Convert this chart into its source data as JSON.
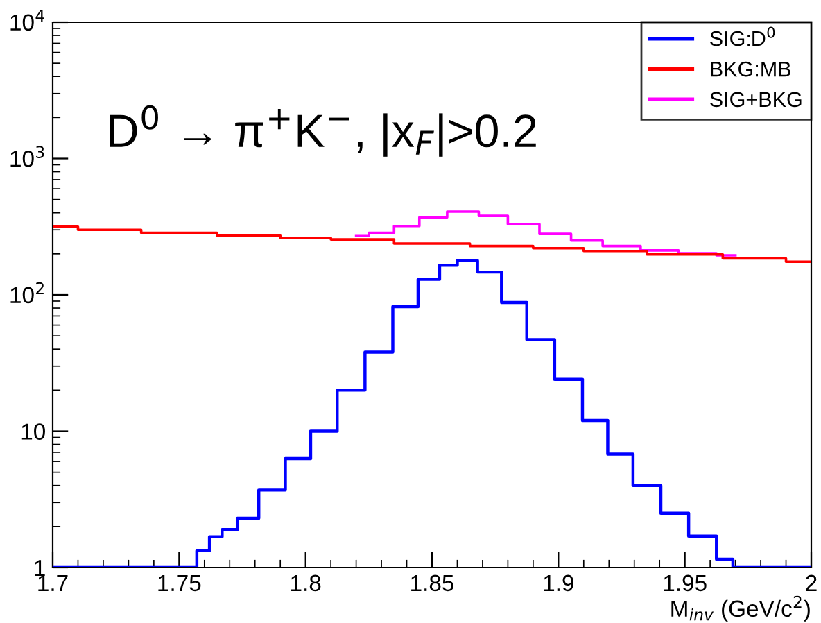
{
  "chart_data": {
    "type": "step",
    "xlabel": "M$_{inv}$ (GeV/c$^{2}$)",
    "annotations": [
      "D$^{0}$ → π$^{+}$K$^{−}$, |x$_{F}$|>0.2"
    ],
    "series": [
      {
        "name": "SIG:D$^{0}$",
        "color": "#0000ff",
        "x": [
          1.7,
          1.72,
          1.74,
          1.754,
          1.76,
          1.764,
          1.77,
          1.776,
          1.787,
          1.797,
          1.807,
          1.818,
          1.829,
          1.84,
          1.849,
          1.857,
          1.863,
          1.873,
          1.882,
          1.893,
          1.904,
          1.915,
          1.924,
          1.935,
          1.946,
          1.957,
          1.968,
          1.97,
          1.98,
          2.0
        ],
        "values": [
          1,
          1,
          1,
          1,
          1.33,
          1.68,
          1.9,
          2.3,
          3.7,
          6.3,
          10,
          20,
          38,
          82,
          130,
          165,
          178,
          147,
          88,
          47,
          24,
          12,
          6.8,
          4,
          2.5,
          1.7,
          1.15,
          1,
          1,
          1
        ]
      },
      {
        "name": "BKG:MB",
        "color": "#ff0000",
        "x": [
          1.7,
          1.72,
          1.75,
          1.78,
          1.8,
          1.82,
          1.85,
          1.88,
          1.9,
          1.92,
          1.95,
          1.98,
          2.0
        ],
        "values": [
          316,
          300,
          285,
          272,
          262,
          255,
          238,
          228,
          220,
          210,
          198,
          185,
          175
        ]
      },
      {
        "name": "SIG+BKG",
        "color": "#ff00ff",
        "x": [
          1.82,
          1.83,
          1.84,
          1.85,
          1.862,
          1.875,
          1.885,
          1.9,
          1.91,
          1.925,
          1.94,
          1.955,
          1.97
        ],
        "values": [
          270,
          285,
          320,
          370,
          408,
          380,
          330,
          280,
          250,
          228,
          212,
          202,
          195
        ]
      }
    ],
    "log": "y",
    "xlim": [
      1.7,
      2.0
    ],
    "ylim": [
      1,
      10000
    ],
    "xticks": [
      1.7,
      1.75,
      1.8,
      1.85,
      1.9,
      1.95,
      {
        "value": 2.0,
        "label": "2"
      }
    ],
    "yticks": [
      1,
      10,
      {
        "value": 100,
        "label": "10$^{2}$"
      },
      {
        "value": 1000,
        "label": "10$^{3}$"
      },
      {
        "value": 10000,
        "label": "10$^{4}$"
      }
    ],
    "legend": "top right",
    "grid": false
  }
}
